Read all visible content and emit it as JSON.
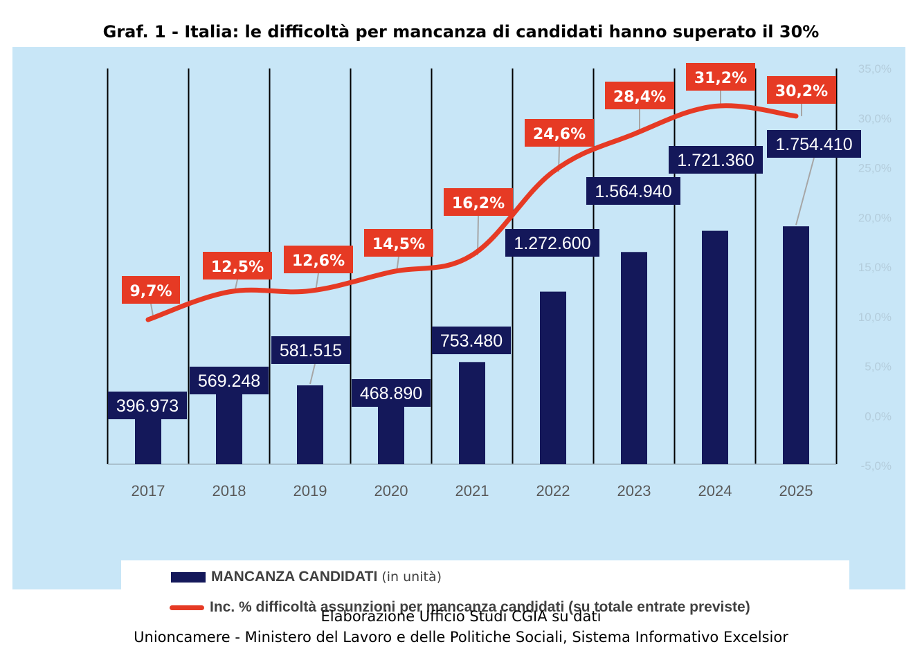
{
  "title": "Graf. 1 - Italia: le difficoltà per mancanza di candidati hanno superato il 30%",
  "source": {
    "line1": "Elaborazione Ufficio Studi CGIA su dati",
    "line2": "Unioncamere - Ministero del Lavoro e delle Politiche Sociali, Sistema Informativo Excelsior"
  },
  "legend": {
    "bar_label": "MANCANZA CANDIDATI",
    "bar_suffix": " (in unità)",
    "line_label": "Inc. % difficoltà assunzioni per mancanza candidati",
    "line_suffix": " (su totale entrate previste)"
  },
  "colors": {
    "panel": "#c8e6f7",
    "bar": "#14185a",
    "line": "#e63a24",
    "label_text": "#ffffff",
    "axis_text": "#595959",
    "right_axis_text": "#b4cddc"
  },
  "chart_data": {
    "type": "bar",
    "categories": [
      "2017",
      "2018",
      "2019",
      "2020",
      "2021",
      "2022",
      "2023",
      "2024",
      "2025"
    ],
    "series": [
      {
        "values": [
          396973,
          569248,
          581515,
          468890,
          753480,
          1272600,
          1564940,
          1721360,
          1754410
        ],
        "labels": [
          "396.973",
          "569.248",
          "581.515",
          "468.890",
          "753.480",
          "1.272.600",
          "1.564.940",
          "1.721.360",
          "1.754.410"
        ]
      },
      {
        "type": "line",
        "axis": "right",
        "values": [
          9.7,
          12.5,
          12.6,
          14.5,
          16.2,
          24.6,
          28.4,
          31.2,
          30.2
        ],
        "labels": [
          "9,7%",
          "12,5%",
          "12,6%",
          "14,5%",
          "16,2%",
          "24,6%",
          "28,4%",
          "31,2%",
          "30,2%"
        ]
      }
    ],
    "right_axis": {
      "ylim": [
        -5,
        35
      ],
      "ticks": [
        -5,
        0,
        5,
        10,
        15,
        20,
        25,
        30,
        35
      ],
      "tick_labels": [
        "-5,0%",
        "0,0%",
        "5,0%",
        "10,0%",
        "15,0%",
        "20,0%",
        "25,0%",
        "30,0%",
        "35,0%"
      ]
    },
    "grid": "vertical",
    "legend_position": "bottom"
  }
}
